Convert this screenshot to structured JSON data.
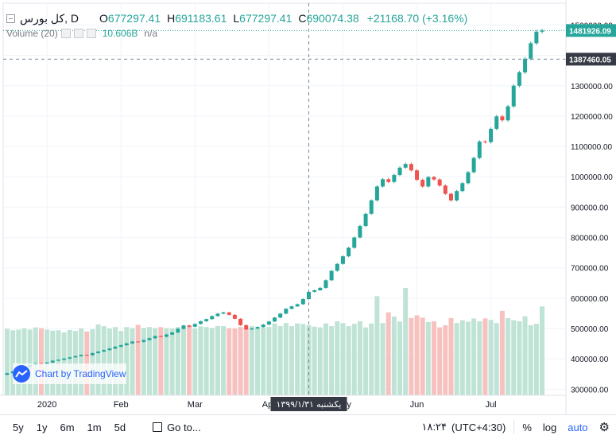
{
  "legend": {
    "symbol": "کل بورس, D",
    "o_label": "O",
    "open": "677297.41",
    "h_label": "H",
    "high": "691183.61",
    "l_label": "L",
    "low": "677297.41",
    "c_label": "C",
    "close": "690074.38",
    "change": "+21168.70 (+3.16%)"
  },
  "volume_legend": {
    "label": "Volume (20)",
    "value": "10.606B",
    "ma": "n/a"
  },
  "watermark": {
    "text": "Chart by TradingView"
  },
  "crosshair_label": "یکشنبه ۱۳۹۹/۱/۳۱",
  "toolbar": {
    "ranges": [
      "5y",
      "1y",
      "6m",
      "1m",
      "5d"
    ],
    "goto": "Go to...",
    "time": "۱۸:۲۴",
    "tz": "(UTC+4:30)",
    "percent": "%",
    "log": "log",
    "auto": "auto"
  },
  "colors": {
    "up": "#26a69a",
    "down": "#ef5350",
    "vol_up": "#bfe3d4",
    "vol_down": "#f7c1c0",
    "label_dark": "#363a45"
  },
  "chart_data": {
    "type": "candlestick",
    "y_ticks": [
      300000,
      400000,
      500000,
      600000,
      700000,
      800000,
      900000,
      1000000,
      1100000,
      1200000,
      1300000,
      1400000,
      1500000
    ],
    "y_tick_labels": [
      "300000.00",
      "400000.00",
      "500000.00",
      "600000.00",
      "700000.00",
      "800000.00",
      "900000.00",
      "1000000.00",
      "1100000.00",
      "1200000.00",
      "1300000.00",
      "1400000.00",
      "1500000.00"
    ],
    "ylim": [
      280000,
      1530000
    ],
    "x_tick_labels": [
      "2020",
      "Feb",
      "Mar",
      "Apr",
      "May",
      "Jun",
      "Jul"
    ],
    "x_tick_index": [
      7,
      20,
      33,
      46,
      59,
      72,
      85
    ],
    "last_price": 1481926.09,
    "last_price_label": "1481926.09",
    "crosshair_price": 1387460.05,
    "crosshair_price_label": "1387460.05",
    "crosshair_index": 53,
    "closes": [
      353000,
      359000,
      366000,
      373000,
      380000,
      386000,
      382000,
      388000,
      394000,
      397000,
      401000,
      405000,
      409000,
      413000,
      412000,
      419000,
      424000,
      429000,
      434000,
      440000,
      445000,
      451000,
      457000,
      456000,
      462000,
      468000,
      475000,
      473000,
      480000,
      487000,
      499000,
      510000,
      506000,
      515000,
      524000,
      531000,
      541000,
      549000,
      553000,
      545000,
      532000,
      511000,
      497000,
      500000,
      505000,
      513000,
      523000,
      536000,
      549000,
      565000,
      573000,
      580000,
      597000,
      621000,
      626000,
      634000,
      659000,
      690000,
      713000,
      738000,
      766000,
      800000,
      838000,
      878000,
      922000,
      968000,
      992000,
      983000,
      1006000,
      1030000,
      1042000,
      1021000,
      990000,
      968000,
      999000,
      991000,
      971000,
      944000,
      922000,
      953000,
      979000,
      1015000,
      1062000,
      1116000,
      1114000,
      1158000,
      1199000,
      1186000,
      1232000,
      1300000,
      1344000,
      1389000,
      1440000,
      1478000,
      1481926
    ],
    "volumes": [
      370000,
      362000,
      365000,
      372000,
      366000,
      378000,
      374000,
      366000,
      360000,
      362000,
      350000,
      364000,
      358000,
      372000,
      355000,
      368000,
      395000,
      385000,
      372000,
      380000,
      358000,
      380000,
      374000,
      392000,
      375000,
      380000,
      374000,
      380000,
      374000,
      372000,
      380000,
      374000,
      386000,
      372000,
      384000,
      380000,
      375000,
      386000,
      385000,
      374000,
      372000,
      380000,
      374000,
      385000,
      372000,
      378000,
      380000,
      400000,
      385000,
      402000,
      385000,
      400000,
      397000,
      390000,
      382000,
      378000,
      400000,
      385000,
      412000,
      402000,
      385000,
      398000,
      412000,
      378000,
      400000,
      552000,
      402000,
      462000,
      438000,
      410000,
      598000,
      430000,
      445000,
      432000,
      408000,
      412000,
      378000,
      390000,
      430000,
      402000,
      418000,
      410000,
      428000,
      412000,
      428000,
      420000,
      402000,
      470000,
      430000,
      418000,
      412000,
      440000,
      390000,
      398000,
      495000
    ]
  }
}
